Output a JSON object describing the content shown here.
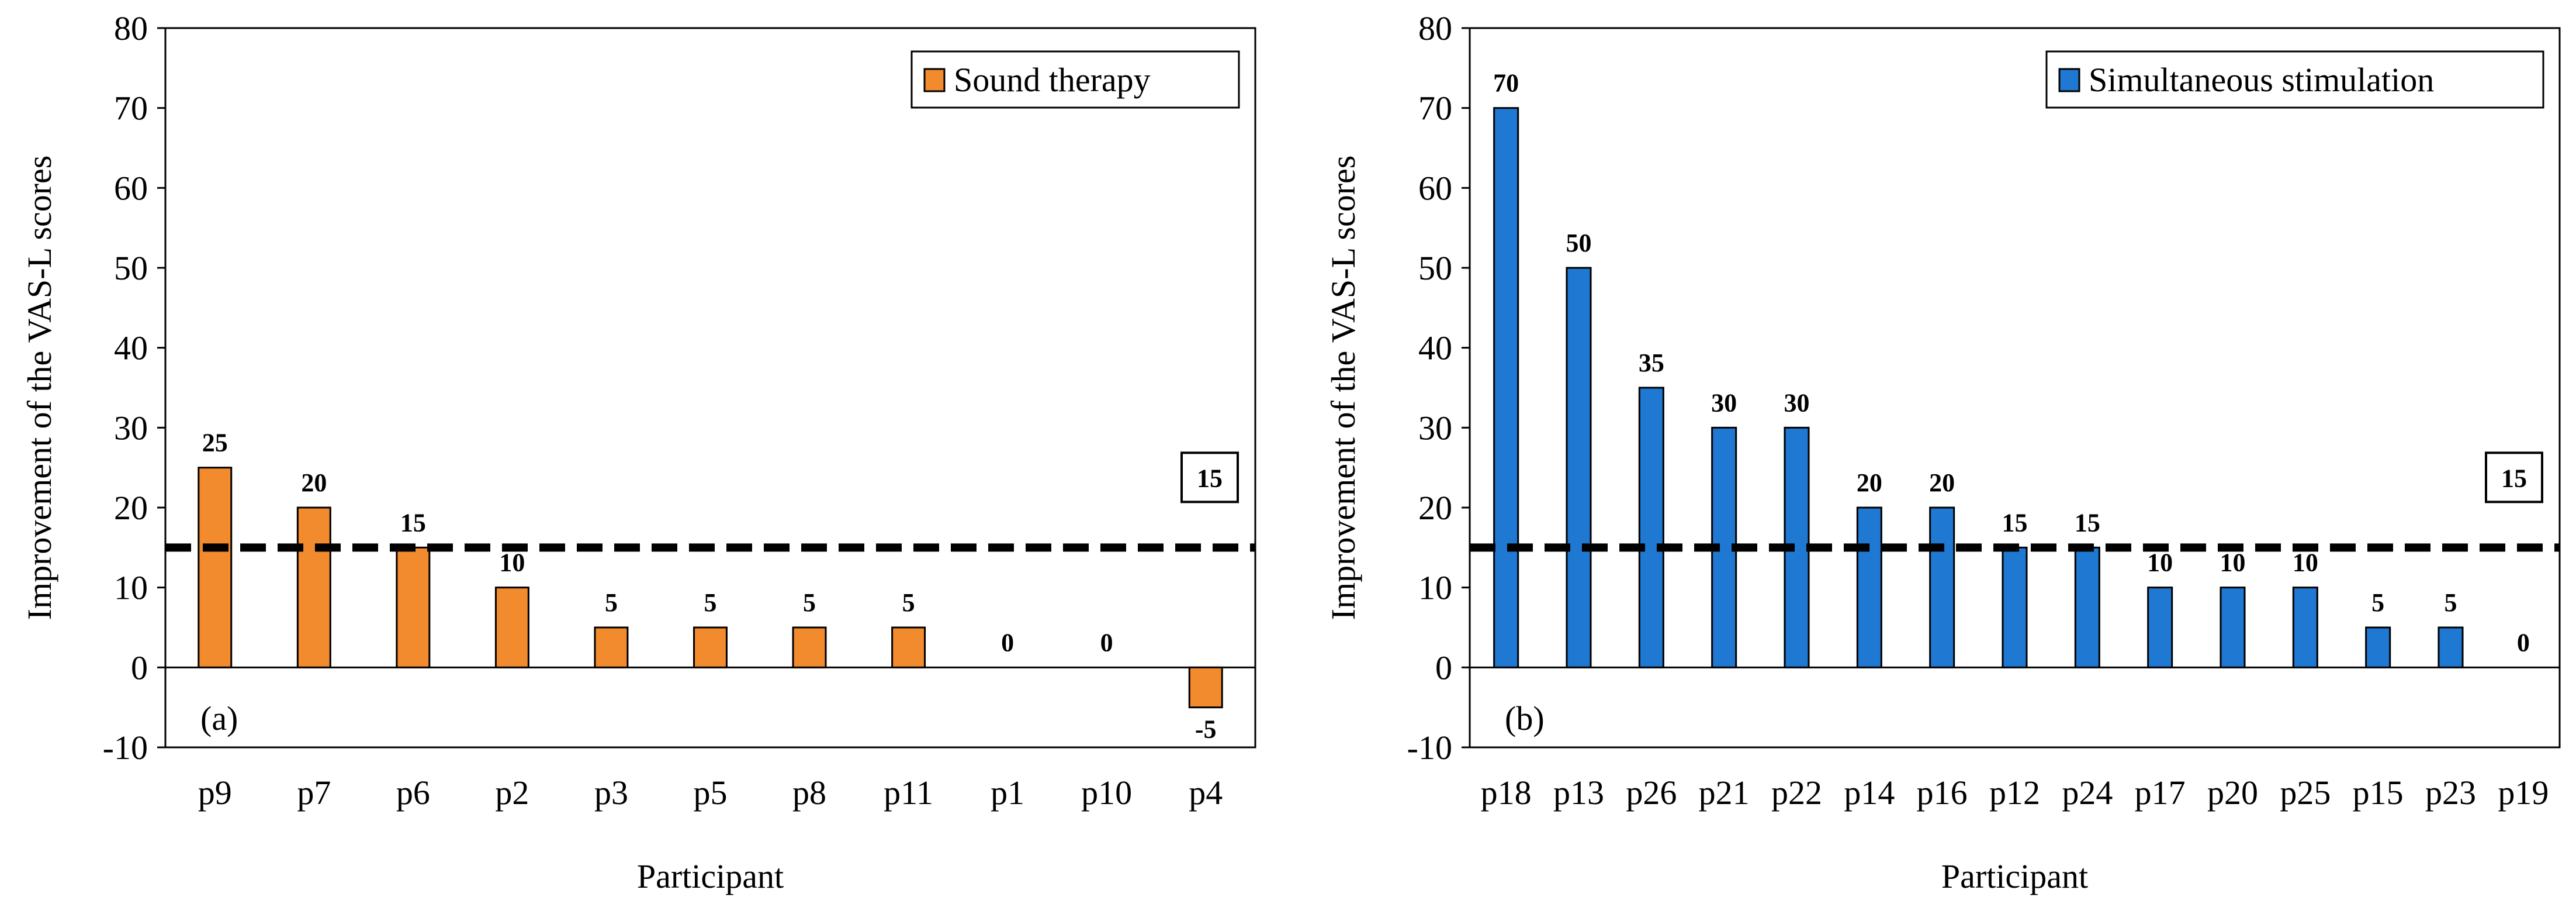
{
  "chart_data": [
    {
      "type": "bar",
      "panel_label": "(a)",
      "title": "",
      "xlabel": "Participant",
      "ylabel": "Improvement of the VAS-L scores",
      "ylim": [
        -10,
        80
      ],
      "yticks": [
        80,
        70,
        60,
        50,
        40,
        30,
        20,
        10,
        0,
        -10
      ],
      "grid": false,
      "legend": {
        "label": "Sound therapy",
        "position": "top-right"
      },
      "color": "#F28A2E",
      "categories": [
        "p9",
        "p7",
        "p6",
        "p2",
        "p3",
        "p5",
        "p8",
        "p11",
        "p1",
        "p10",
        "p4"
      ],
      "values": [
        25,
        20,
        15,
        10,
        5,
        5,
        5,
        5,
        0,
        0,
        -5
      ],
      "threshold": {
        "value": 15,
        "label": "15",
        "style": "dashed"
      }
    },
    {
      "type": "bar",
      "panel_label": "(b)",
      "title": "",
      "xlabel": "Participant",
      "ylabel": "Improvement of the VAS-L scores",
      "ylim": [
        -10,
        80
      ],
      "yticks": [
        80,
        70,
        60,
        50,
        40,
        30,
        20,
        10,
        0,
        -10
      ],
      "grid": false,
      "legend": {
        "label": "Simultaneous stimulation",
        "position": "top-right"
      },
      "color": "#1F78D1",
      "categories": [
        "p18",
        "p13",
        "p26",
        "p21",
        "p22",
        "p14",
        "p16",
        "p12",
        "p24",
        "p17",
        "p20",
        "p25",
        "p15",
        "p23",
        "p19"
      ],
      "values": [
        70,
        50,
        35,
        30,
        30,
        20,
        20,
        15,
        15,
        10,
        10,
        10,
        5,
        5,
        0
      ],
      "threshold": {
        "value": 15,
        "label": "15",
        "style": "dashed"
      }
    }
  ]
}
